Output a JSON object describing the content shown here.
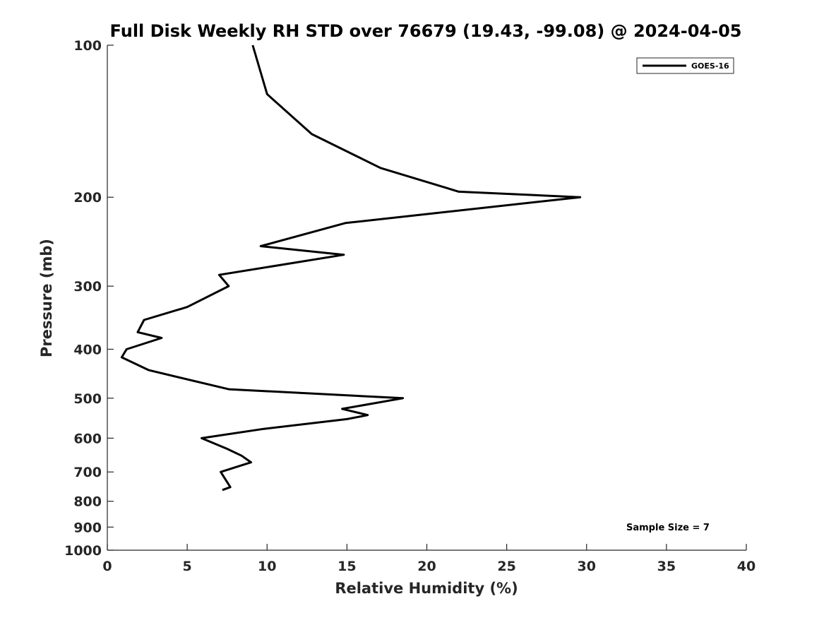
{
  "chart_data": {
    "type": "line",
    "title": "Full Disk Weekly RH STD over 76679 (19.43, -99.08) @ 2024-04-05",
    "xlabel": "Relative Humidity (%)",
    "ylabel": "Pressure (mb)",
    "xlim": [
      0,
      40
    ],
    "ylim": [
      100,
      1000
    ],
    "yscale": "log",
    "yreverse": true,
    "xticks": [
      0,
      5,
      10,
      15,
      20,
      25,
      30,
      35,
      40
    ],
    "yticks": [
      100,
      200,
      300,
      400,
      500,
      600,
      700,
      800,
      900,
      1000
    ],
    "legend_position": "top-right",
    "grid": false,
    "series": [
      {
        "name": "GOES-16",
        "color": "#000000",
        "points": [
          [
            9.1,
            100
          ],
          [
            10.0,
            125
          ],
          [
            12.8,
            150
          ],
          [
            17.1,
            175
          ],
          [
            22.0,
            195
          ],
          [
            29.6,
            200
          ],
          [
            14.9,
            225
          ],
          [
            9.6,
            250
          ],
          [
            14.8,
            260
          ],
          [
            7.0,
            285
          ],
          [
            7.6,
            300
          ],
          [
            5.0,
            330
          ],
          [
            2.3,
            350
          ],
          [
            1.9,
            370
          ],
          [
            3.4,
            380
          ],
          [
            1.2,
            400
          ],
          [
            0.9,
            415
          ],
          [
            2.6,
            440
          ],
          [
            7.6,
            480
          ],
          [
            18.5,
            500
          ],
          [
            14.7,
            525
          ],
          [
            16.3,
            540
          ],
          [
            15.0,
            550
          ],
          [
            9.8,
            575
          ],
          [
            5.9,
            600
          ],
          [
            7.5,
            630
          ],
          [
            8.4,
            650
          ],
          [
            9.0,
            670
          ],
          [
            7.1,
            700
          ],
          [
            7.7,
            750
          ],
          [
            7.2,
            760
          ]
        ]
      }
    ],
    "annotations": [
      {
        "text": "Sample Size = 7",
        "position": "bottom-right"
      }
    ]
  }
}
